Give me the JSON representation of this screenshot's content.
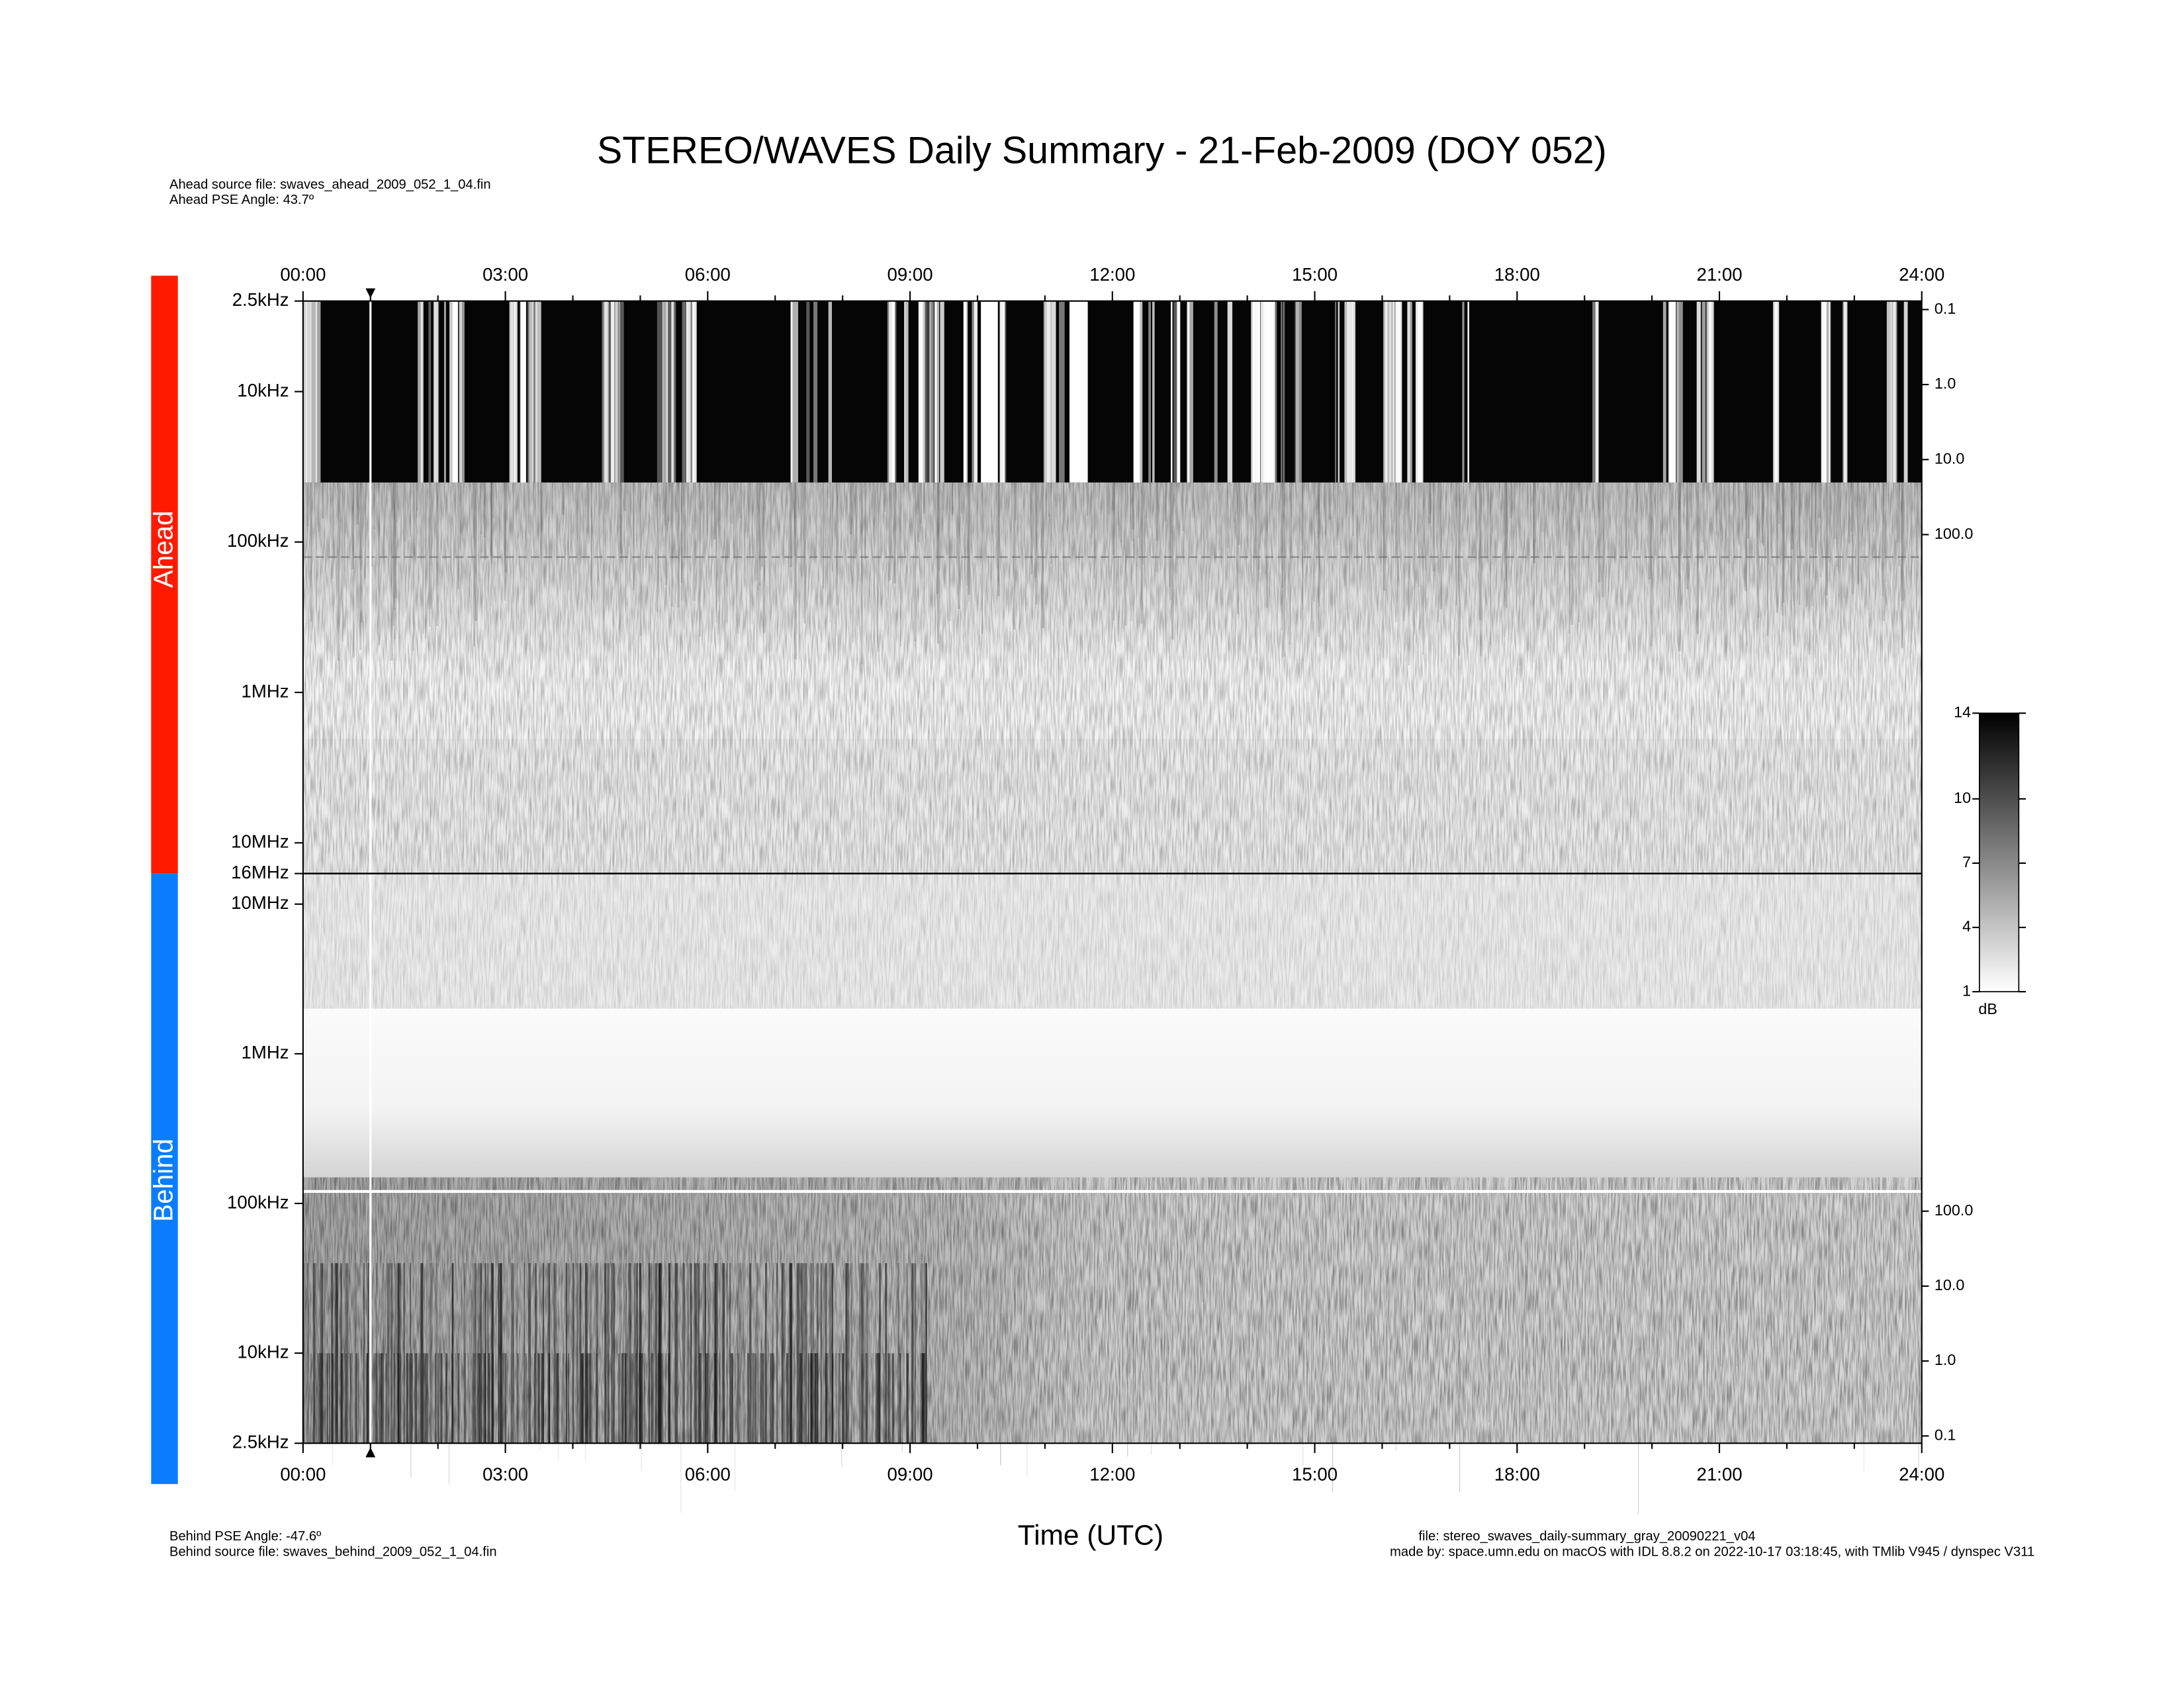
{
  "header": {
    "title": "STEREO/WAVES Daily Summary - 21-Feb-2009 (DOY 052)",
    "ahead_source": "Ahead source file: swaves_ahead_2009_052_1_04.fin",
    "ahead_angle": "Ahead PSE Angle:   43.7º"
  },
  "time_axis": {
    "xlim": [
      0,
      24
    ],
    "label": "Time (UTC)",
    "xticks": [
      {
        "value": 0,
        "label": "00:00"
      },
      {
        "value": 3,
        "label": "03:00"
      },
      {
        "value": 6,
        "label": "06:00"
      },
      {
        "value": 9,
        "label": "09:00"
      },
      {
        "value": 12,
        "label": "12:00"
      },
      {
        "value": 15,
        "label": "15:00"
      },
      {
        "value": 18,
        "label": "18:00"
      },
      {
        "value": 21,
        "label": "21:00"
      },
      {
        "value": 24,
        "label": "24:00"
      }
    ],
    "marker": 1
  },
  "panels": [
    {
      "label": "Ahead",
      "color": "#ff1a00",
      "log_scale": true,
      "ylim": [
        2500,
        16000000
      ],
      "yticks": [
        {
          "value": 2500,
          "label": "2.5kHz"
        },
        {
          "value": 10000,
          "label": "10kHz"
        },
        {
          "value": 100000,
          "label": "100kHz"
        },
        {
          "value": 1000000,
          "label": "1MHz"
        },
        {
          "value": 10000000,
          "label": "10MHz"
        },
        {
          "value": 16000000,
          "label": "16MHz"
        }
      ],
      "y2lim": [
        0.077,
        3300000
      ],
      "y2ticks": [
        0.1,
        {
          "value": 1,
          "label": "1.0"
        },
        {
          "value": 10,
          "label": "10.0"
        },
        {
          "value": 100,
          "label": "100.0"
        }
      ]
    },
    {
      "label": "Behind",
      "color": "#0a7dff",
      "log_scale": true,
      "ylim": [
        16000000,
        2500
      ],
      "yticks": [
        {
          "value": 10000000,
          "label": "10MHz"
        },
        {
          "value": 1000000,
          "label": "1MHz"
        },
        {
          "value": 100000,
          "label": "100kHz"
        },
        {
          "value": 10000,
          "label": "10kHz"
        },
        {
          "value": 2500,
          "label": "2.5kHz"
        }
      ],
      "y2lim": [
        3200000,
        0.08
      ],
      "y2ticks": [
        {
          "value": 100,
          "label": "100.0"
        },
        {
          "value": 10,
          "label": "10.0"
        },
        {
          "value": 1,
          "label": "1.0"
        },
        0.1
      ]
    }
  ],
  "colorbar": {
    "lim": [
      1,
      14
    ],
    "ticks": [
      14,
      10,
      7,
      4,
      1
    ],
    "label": "dB"
  },
  "footer": {
    "behind_angle": "Behind PSE Angle:  -47.6º",
    "behind_source": "Behind source file: swaves_behind_2009_052_1_04.fin",
    "file": "file: stereo_swaves_daily-summary_gray_20090221_v04",
    "made_by": "made by: space.umn.edu on macOS with IDL 8.8.2 on 2022-10-17 03:18:45, with TMlib V945 / dynspec V311"
  }
}
